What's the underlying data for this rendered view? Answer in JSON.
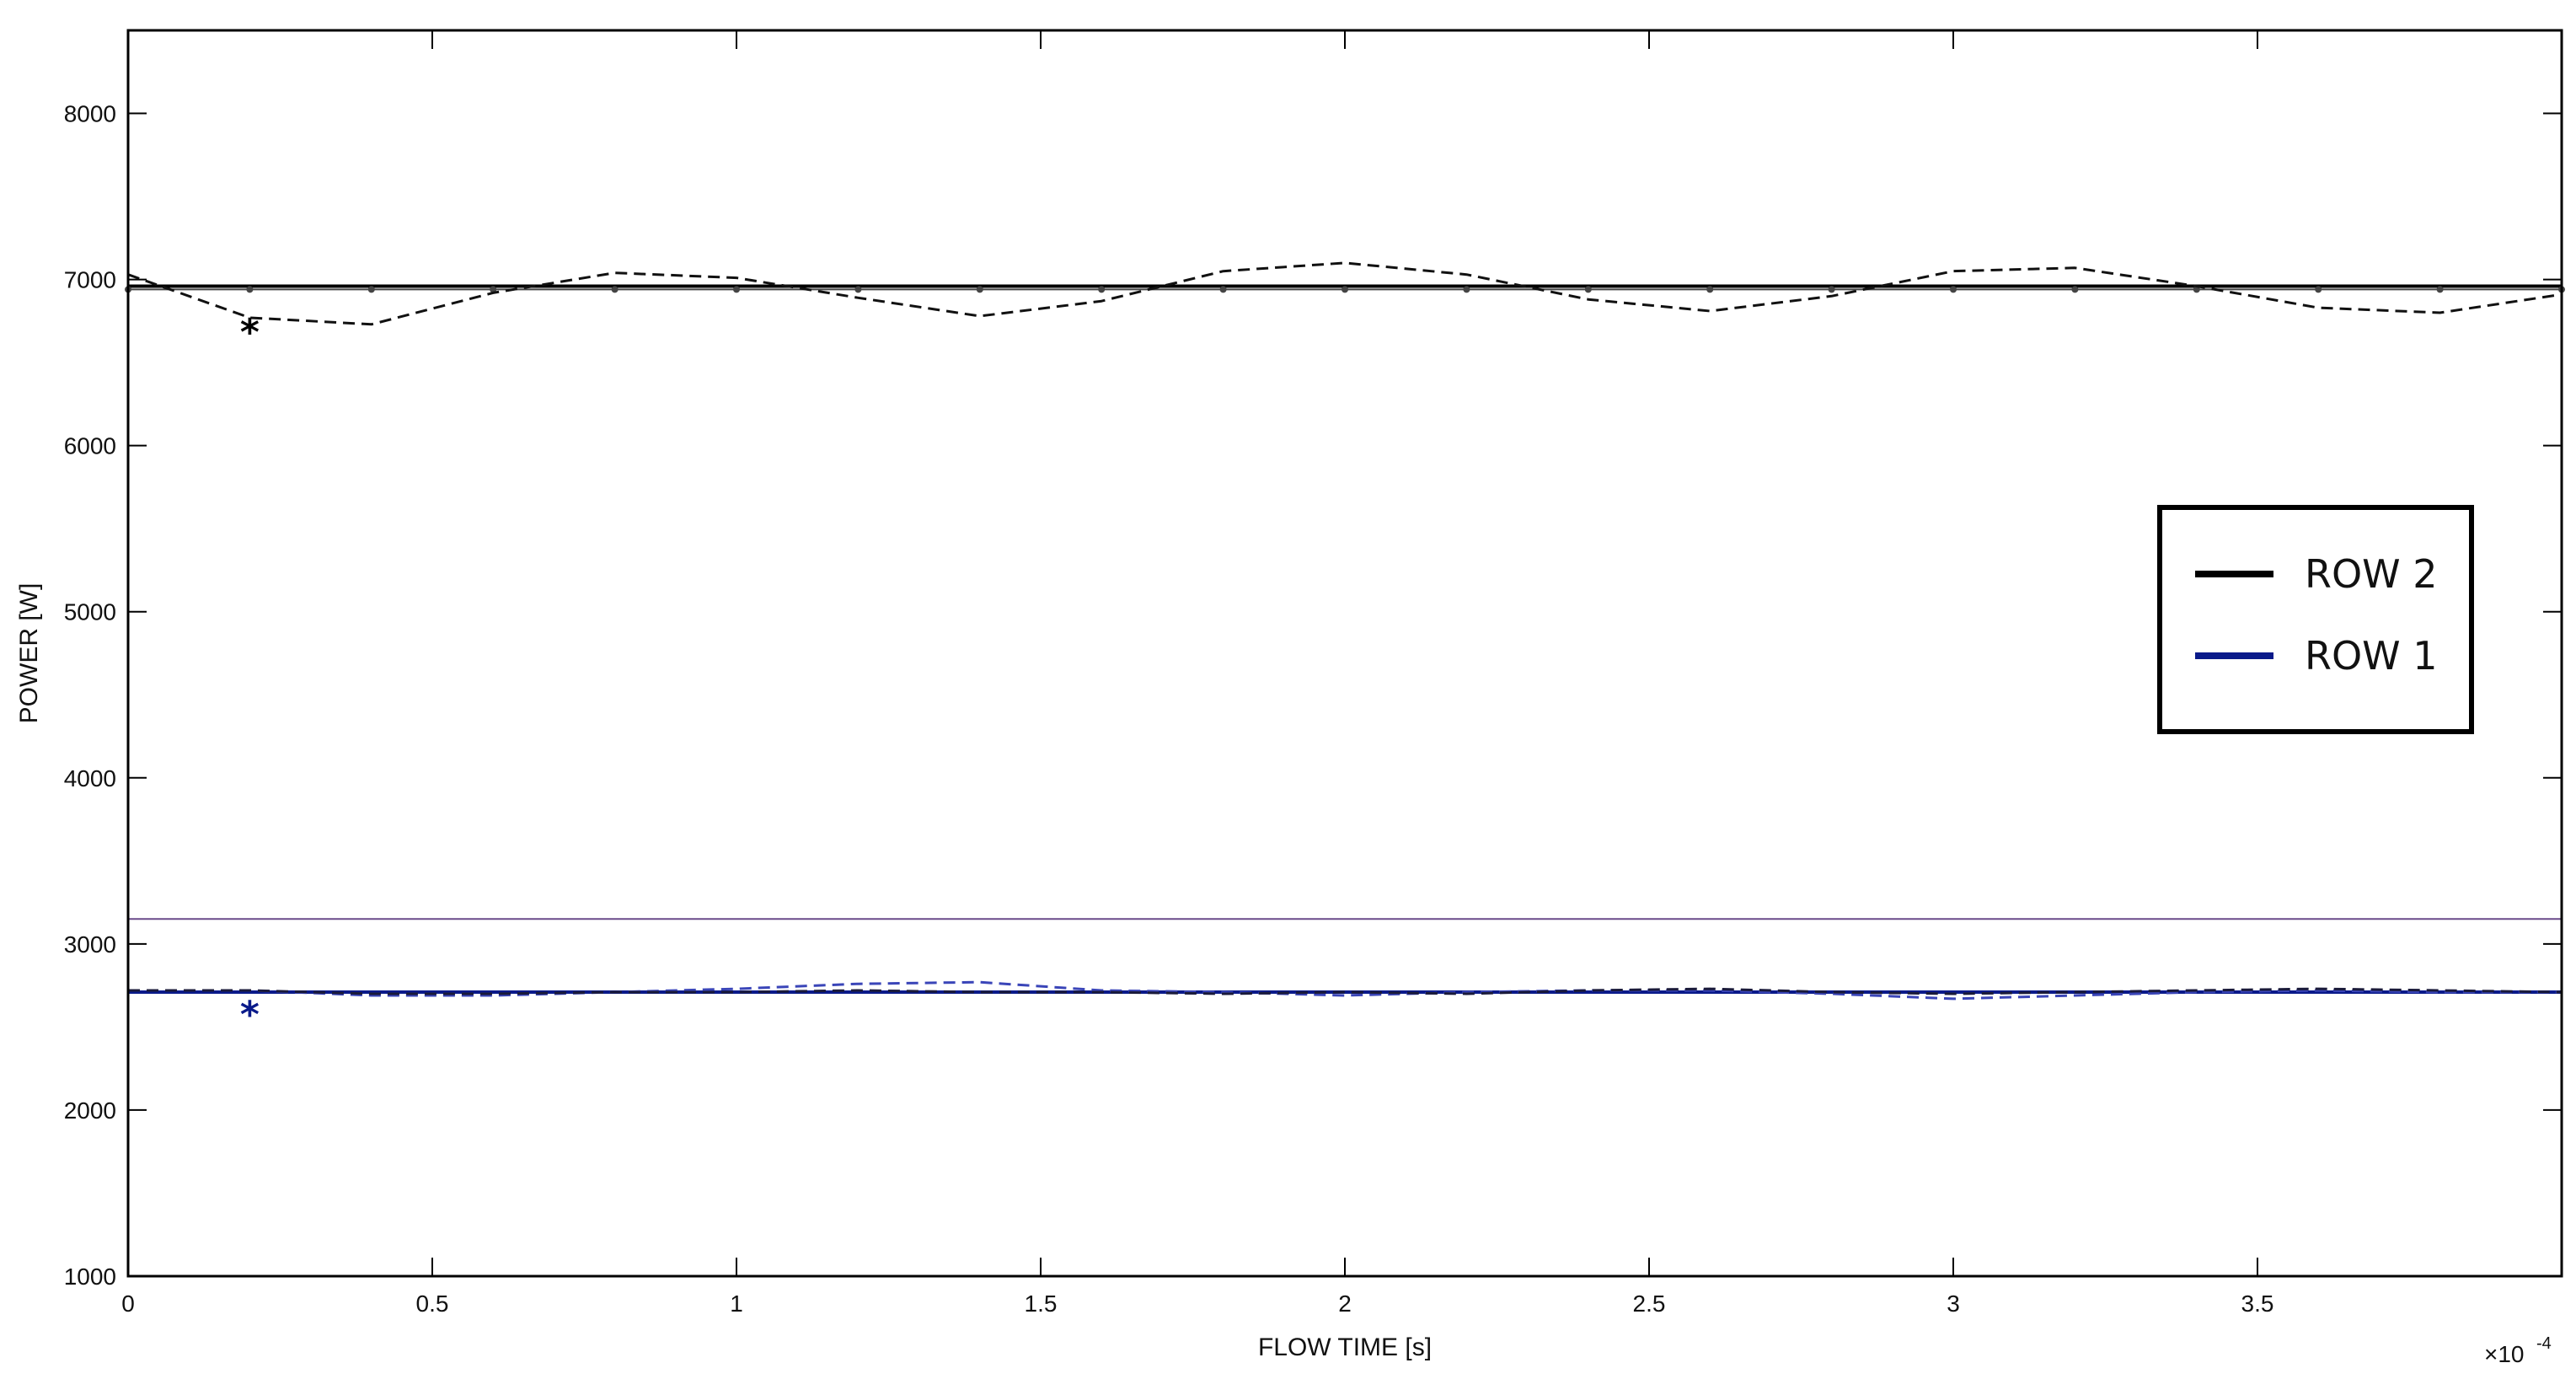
{
  "chart_data": {
    "type": "line",
    "xlabel": "FLOW TIME [s]",
    "ylabel": "POWER [W]",
    "x_multiplier_label": "×10",
    "x_multiplier_exponent": "-4",
    "xlim": [
      0,
      4
    ],
    "ylim": [
      1000,
      8500
    ],
    "x_ticks": [
      0,
      0.5,
      1,
      1.5,
      2,
      2.5,
      3,
      3.5
    ],
    "x_tick_labels": [
      "0",
      "0.5",
      "1",
      "1.5",
      "2",
      "2.5",
      "3",
      "3.5"
    ],
    "y_ticks": [
      1000,
      2000,
      3000,
      4000,
      5000,
      6000,
      7000,
      8000
    ],
    "y_tick_labels": [
      "1000",
      "2000",
      "3000",
      "4000",
      "5000",
      "6000",
      "7000",
      "8000"
    ],
    "grid": false,
    "legend_position": "right",
    "legend": [
      {
        "label": "ROW 2",
        "color": "#000000"
      },
      {
        "label": "ROW 1",
        "color": "#0a1a8a"
      }
    ],
    "series": [
      {
        "name": "ROW 2",
        "style": "solid",
        "color": "#000000",
        "x": [
          0,
          4
        ],
        "y": [
          6960,
          6960
        ]
      },
      {
        "style": "solid-dots",
        "color": "#444444",
        "x": [
          0,
          0.2,
          0.4,
          0.6,
          0.8,
          1,
          1.2,
          1.4,
          1.6,
          1.8,
          2,
          2.2,
          2.4,
          2.6,
          2.8,
          3,
          3.2,
          3.4,
          3.6,
          3.8,
          4
        ],
        "y": [
          6940,
          6940,
          6940,
          6940,
          6940,
          6940,
          6940,
          6940,
          6940,
          6940,
          6940,
          6940,
          6940,
          6940,
          6940,
          6940,
          6940,
          6940,
          6940,
          6940,
          6940
        ]
      },
      {
        "style": "dashed",
        "color": "#111111",
        "x": [
          0,
          0.2,
          0.4,
          0.6,
          0.8,
          1,
          1.2,
          1.4,
          1.6,
          1.8,
          2,
          2.2,
          2.4,
          2.6,
          2.8,
          3,
          3.2,
          3.4,
          3.6,
          3.8,
          4
        ],
        "y": [
          7030,
          6770,
          6730,
          6920,
          7040,
          7010,
          6890,
          6780,
          6870,
          7050,
          7100,
          7030,
          6880,
          6810,
          6900,
          7050,
          7070,
          6960,
          6830,
          6800,
          6910
        ]
      },
      {
        "name": "ROW 1",
        "style": "solid",
        "color": "#0a1a8a",
        "x": [
          0,
          4
        ],
        "y": [
          2710,
          2710
        ]
      },
      {
        "style": "solid",
        "color": "#6a4a8a",
        "x": [
          0,
          4
        ],
        "y": [
          3150,
          3150
        ]
      },
      {
        "style": "dashed",
        "color": "#3a45b8",
        "x": [
          0,
          0.2,
          0.4,
          0.6,
          0.8,
          1,
          1.2,
          1.4,
          1.6,
          1.8,
          2,
          2.2,
          2.4,
          2.6,
          2.8,
          3,
          3.2,
          3.4,
          3.6,
          3.8,
          4
        ],
        "y": [
          2720,
          2720,
          2690,
          2690,
          2710,
          2730,
          2760,
          2770,
          2720,
          2710,
          2690,
          2710,
          2720,
          2720,
          2700,
          2670,
          2690,
          2710,
          2720,
          2710,
          2710
        ]
      },
      {
        "style": "dashed",
        "color": "#1a1a3a",
        "x": [
          0,
          0.2,
          0.4,
          0.6,
          0.8,
          1,
          1.2,
          1.4,
          1.6,
          1.8,
          2,
          2.2,
          2.4,
          2.6,
          2.8,
          3,
          3.2,
          3.4,
          3.6,
          3.8,
          4
        ],
        "y": [
          2720,
          2720,
          2700,
          2700,
          2710,
          2710,
          2720,
          2710,
          2710,
          2700,
          2710,
          2700,
          2720,
          2730,
          2710,
          2700,
          2710,
          2720,
          2730,
          2720,
          2710
        ]
      }
    ],
    "markers": [
      {
        "x": 0.2,
        "y": 6720,
        "symbol": "*",
        "color": "#000000"
      },
      {
        "x": 0.2,
        "y": 2610,
        "symbol": "*",
        "color": "#0a1a8a"
      }
    ]
  }
}
